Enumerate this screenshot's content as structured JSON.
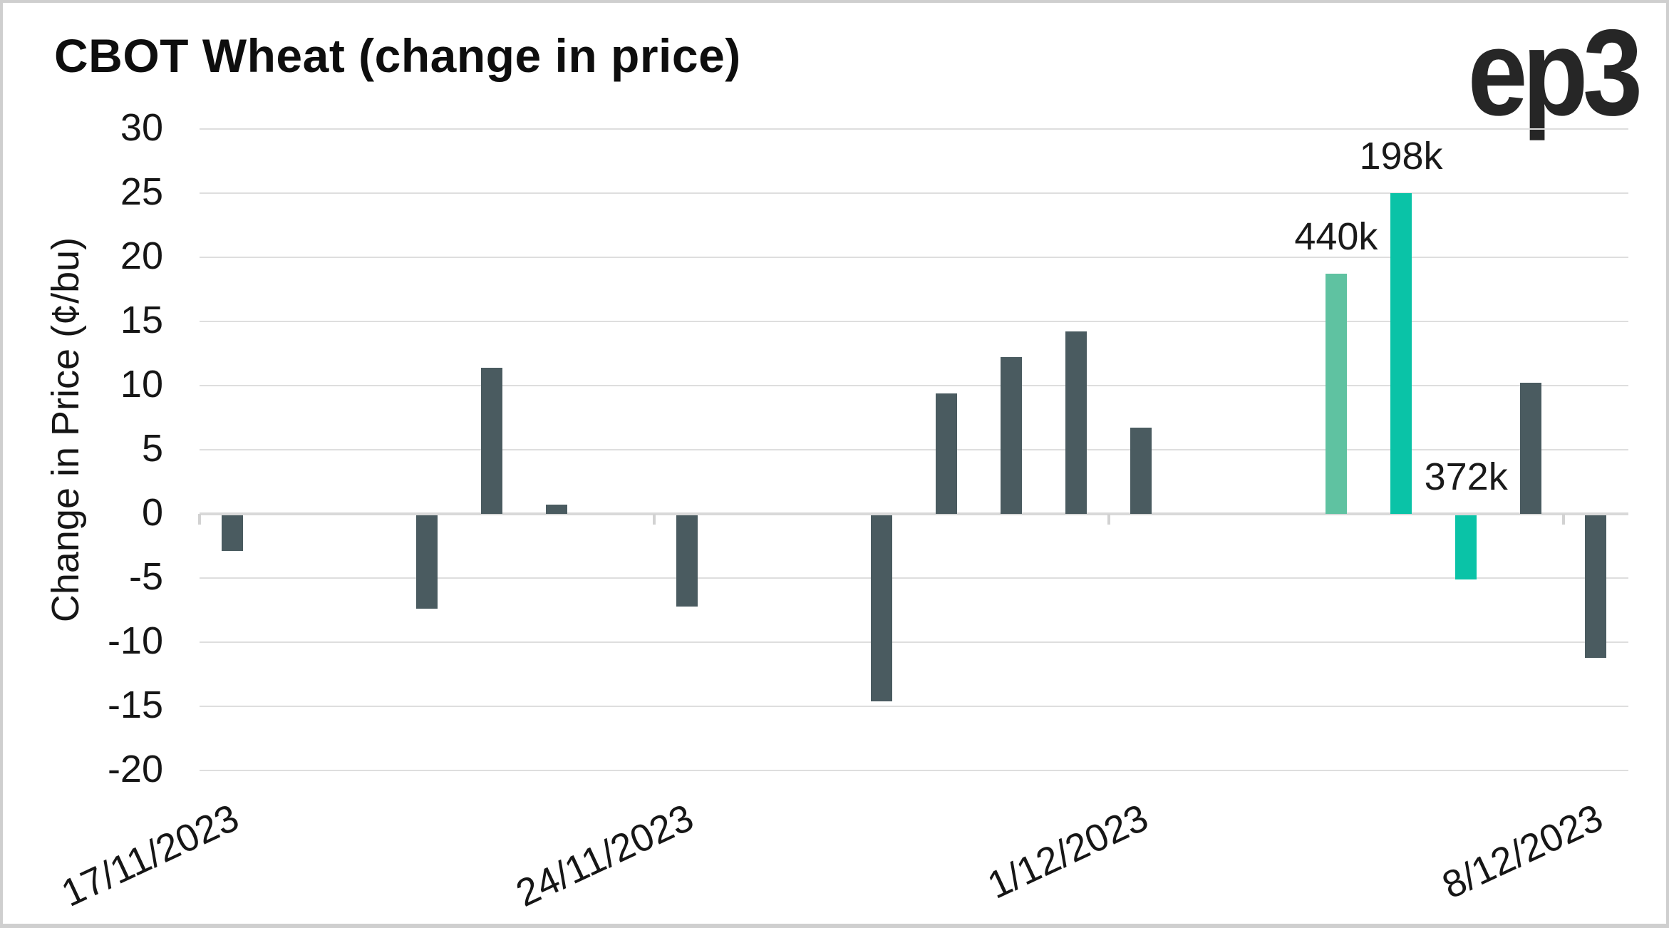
{
  "header": {
    "title": "CBOT Wheat (change in price)",
    "logo_text": "ep3"
  },
  "colors": {
    "background": "#ffffff",
    "border": "#cfcfcf",
    "title_text": "#0e0e0e",
    "logo_text": "#262626",
    "axis_text": "#161616",
    "gridline": "#dedede",
    "zero_axis": "#d9d9d9",
    "tick_mark": "#d2d2d2",
    "bar_dark": "#4a5b60",
    "bar_light_green": "#5fc2a1",
    "bar_teal": "#0ac3a7"
  },
  "chart_data": {
    "type": "bar",
    "title": "CBOT Wheat (change in price)",
    "xlabel": "",
    "ylabel": "Change in Price (¢/bu)",
    "ylim": [
      -20,
      30
    ],
    "ytick_step": 5,
    "yticks": [
      30,
      25,
      20,
      15,
      10,
      5,
      0,
      -5,
      -10,
      -15,
      -20
    ],
    "grid": "horizontal",
    "legend": "none",
    "x_axis": {
      "total_day_slots": 22,
      "tick_labels": [
        {
          "label": "17/11/2023",
          "day_offset": 0
        },
        {
          "label": "24/11/2023",
          "day_offset": 7
        },
        {
          "label": "1/12/2023",
          "day_offset": 14
        },
        {
          "label": "8/12/2023",
          "day_offset": 21
        }
      ]
    },
    "points": [
      {
        "date": "17/11/2023",
        "day_offset": 0,
        "value": -2.8,
        "color": "dark"
      },
      {
        "date": "20/11/2023",
        "day_offset": 3,
        "value": -7.3,
        "color": "dark"
      },
      {
        "date": "21/11/2023",
        "day_offset": 4,
        "value": 11.4,
        "color": "dark"
      },
      {
        "date": "22/11/2023",
        "day_offset": 5,
        "value": 0.7,
        "color": "dark"
      },
      {
        "date": "24/11/2023",
        "day_offset": 7,
        "value": -7.1,
        "color": "dark"
      },
      {
        "date": "27/11/2023",
        "day_offset": 10,
        "value": -14.5,
        "color": "dark"
      },
      {
        "date": "28/11/2023",
        "day_offset": 11,
        "value": 9.4,
        "color": "dark"
      },
      {
        "date": "29/11/2023",
        "day_offset": 12,
        "value": 12.2,
        "color": "dark"
      },
      {
        "date": "30/11/2023",
        "day_offset": 13,
        "value": 14.2,
        "color": "dark"
      },
      {
        "date": "1/12/2023",
        "day_offset": 14,
        "value": 6.7,
        "color": "dark"
      },
      {
        "date": "4/12/2023",
        "day_offset": 17,
        "value": 18.7,
        "color": "light_green",
        "annotation": "440k"
      },
      {
        "date": "5/12/2023",
        "day_offset": 18,
        "value": 25.0,
        "color": "teal",
        "annotation": "198k"
      },
      {
        "date": "6/12/2023",
        "day_offset": 19,
        "value": -5.0,
        "color": "teal",
        "annotation": "372k"
      },
      {
        "date": "7/12/2023",
        "day_offset": 20,
        "value": 10.2,
        "color": "dark"
      },
      {
        "date": "8/12/2023",
        "day_offset": 21,
        "value": -11.1,
        "color": "dark"
      }
    ]
  }
}
